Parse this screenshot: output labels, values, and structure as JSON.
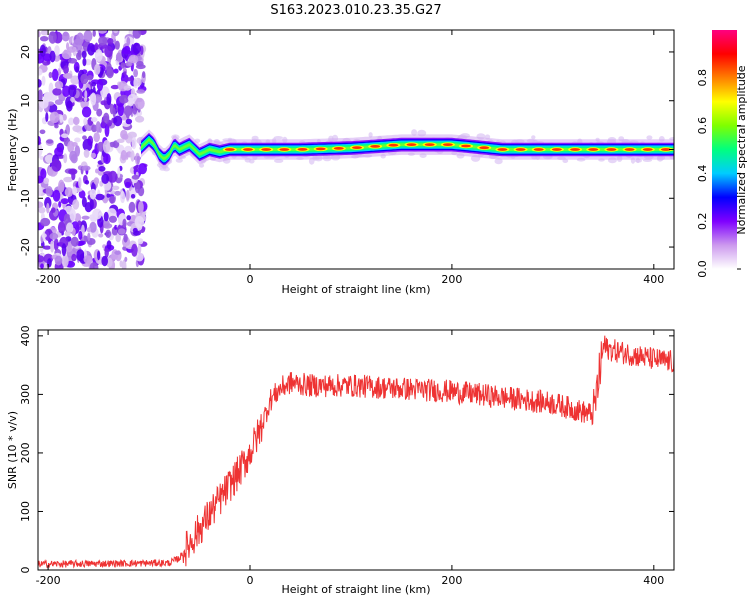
{
  "title": "S163.2023.010.23.35.G27",
  "chart_data": [
    {
      "type": "heatmap",
      "xlabel": "Height of straight line (km)",
      "ylabel": "Frequency (Hz)",
      "xlim": [
        -210,
        420
      ],
      "ylim": [
        -24.5,
        24.5
      ],
      "xticks": [
        "-200",
        "0",
        "200",
        "400"
      ],
      "yticks": [
        "-20",
        "-10",
        "0",
        "10",
        "20"
      ],
      "colorbar": {
        "label": "Normalized spectral amplitude",
        "range": [
          0,
          1
        ],
        "ticks": [
          "0.0",
          "0.2",
          "0.4",
          "0.6",
          "0.8"
        ],
        "colors": [
          "#ffffff",
          "#cc99ee",
          "#7f00ff",
          "#0000ff",
          "#00ccff",
          "#00ff7f",
          "#7fff00",
          "#ffff00",
          "#ff7f00",
          "#ff0000",
          "#ff0080"
        ]
      },
      "noise_region_x": [
        -210,
        -105
      ],
      "ridge": {
        "x": [
          -110,
          -100,
          -95,
          -90,
          -85,
          -80,
          -75,
          -70,
          -60,
          -50,
          -40,
          -30,
          -20,
          0,
          50,
          100,
          150,
          200,
          250,
          300,
          350,
          420
        ],
        "freq": [
          0,
          2,
          1,
          -1,
          -2,
          -1,
          1,
          0,
          1,
          -1,
          0,
          -0.5,
          0,
          0,
          0,
          0.3,
          1,
          1,
          0,
          0,
          0,
          0
        ]
      }
    },
    {
      "type": "line",
      "xlabel": "Height of straight line (km)",
      "ylabel": "SNR (10 * v/v)",
      "xlim": [
        -210,
        420
      ],
      "ylim": [
        0,
        410
      ],
      "xticks": [
        "-200",
        "0",
        "200",
        "400"
      ],
      "yticks": [
        "0",
        "100",
        "200",
        "300",
        "400"
      ],
      "color": "#ee3333",
      "series": [
        {
          "x": [
            -210,
            -80,
            -70,
            -50,
            -30,
            -10,
            0,
            10,
            20,
            30,
            40,
            60,
            100,
            150,
            200,
            250,
            300,
            340,
            345,
            350,
            360,
            400,
            420
          ],
          "y": [
            10,
            12,
            20,
            70,
            120,
            170,
            200,
            240,
            290,
            310,
            320,
            315,
            315,
            310,
            305,
            295,
            285,
            265,
            320,
            380,
            375,
            360,
            355
          ]
        }
      ]
    }
  ]
}
